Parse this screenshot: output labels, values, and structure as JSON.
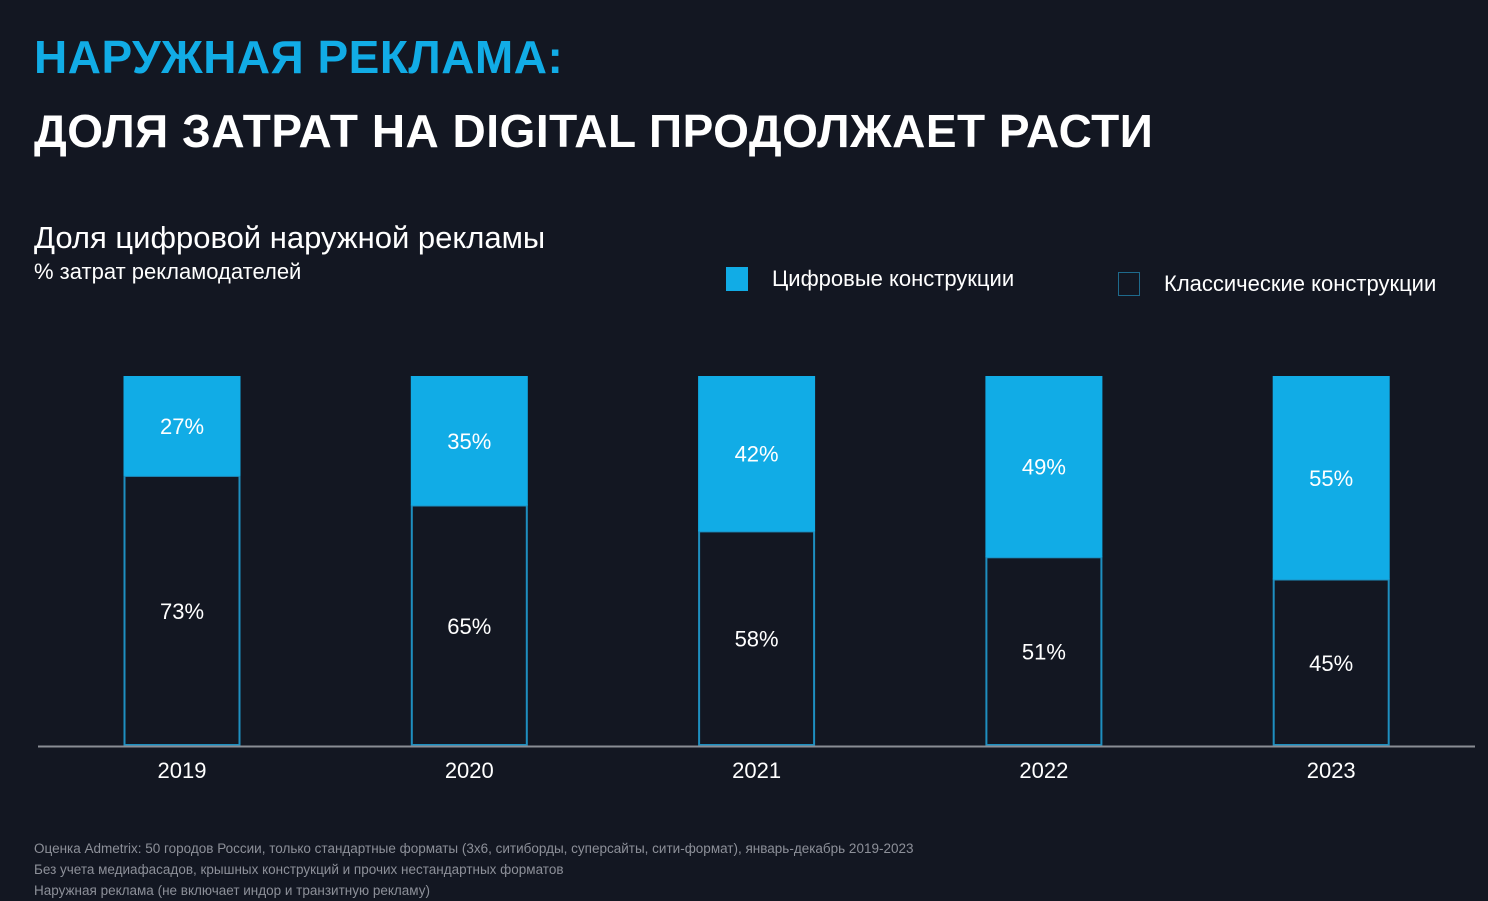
{
  "header": {
    "title_line1": "НАРУЖНАЯ РЕКЛАМА:",
    "title_line2": "ДОЛЯ ЗАТРАТ НА DIGITAL ПРОДОЛЖАЕТ РАСТИ"
  },
  "colors": {
    "background": "#131722",
    "accent": "#11ace6",
    "classic_border": "#1e8fc0",
    "axis": "#8a8d94",
    "text": "#ffffff",
    "notes": "#8d9099"
  },
  "chart_data": {
    "type": "bar",
    "stacked": true,
    "normalized": true,
    "title": "Доля цифровой наружной рекламы",
    "subtitle": "% затрат рекламодателей",
    "xlabel": "",
    "ylabel": "",
    "ylim": [
      0,
      100
    ],
    "grid": false,
    "legend_position": "top-right",
    "categories": [
      "2019",
      "2020",
      "2021",
      "2022",
      "2023"
    ],
    "series": [
      {
        "name": "Цифровые конструкции",
        "values": [
          27,
          35,
          42,
          49,
          55
        ],
        "labels": [
          "27%",
          "35%",
          "42%",
          "49%",
          "55%"
        ]
      },
      {
        "name": "Классические конструкции",
        "values": [
          73,
          65,
          58,
          51,
          45
        ],
        "labels": [
          "73%",
          "65%",
          "58%",
          "51%",
          "45%"
        ]
      }
    ]
  },
  "notes": [
    "Оценка Admetrix: 50 городов России, только стандартные форматы (3х6, ситиборды, суперсайты, сити-формат), январь-декабрь 2019-2023",
    "Без учета медиафасадов, крышных конструкций и прочих нестандартных форматов",
    "Наружная реклама (не включает индор и транзитную рекламу)"
  ]
}
